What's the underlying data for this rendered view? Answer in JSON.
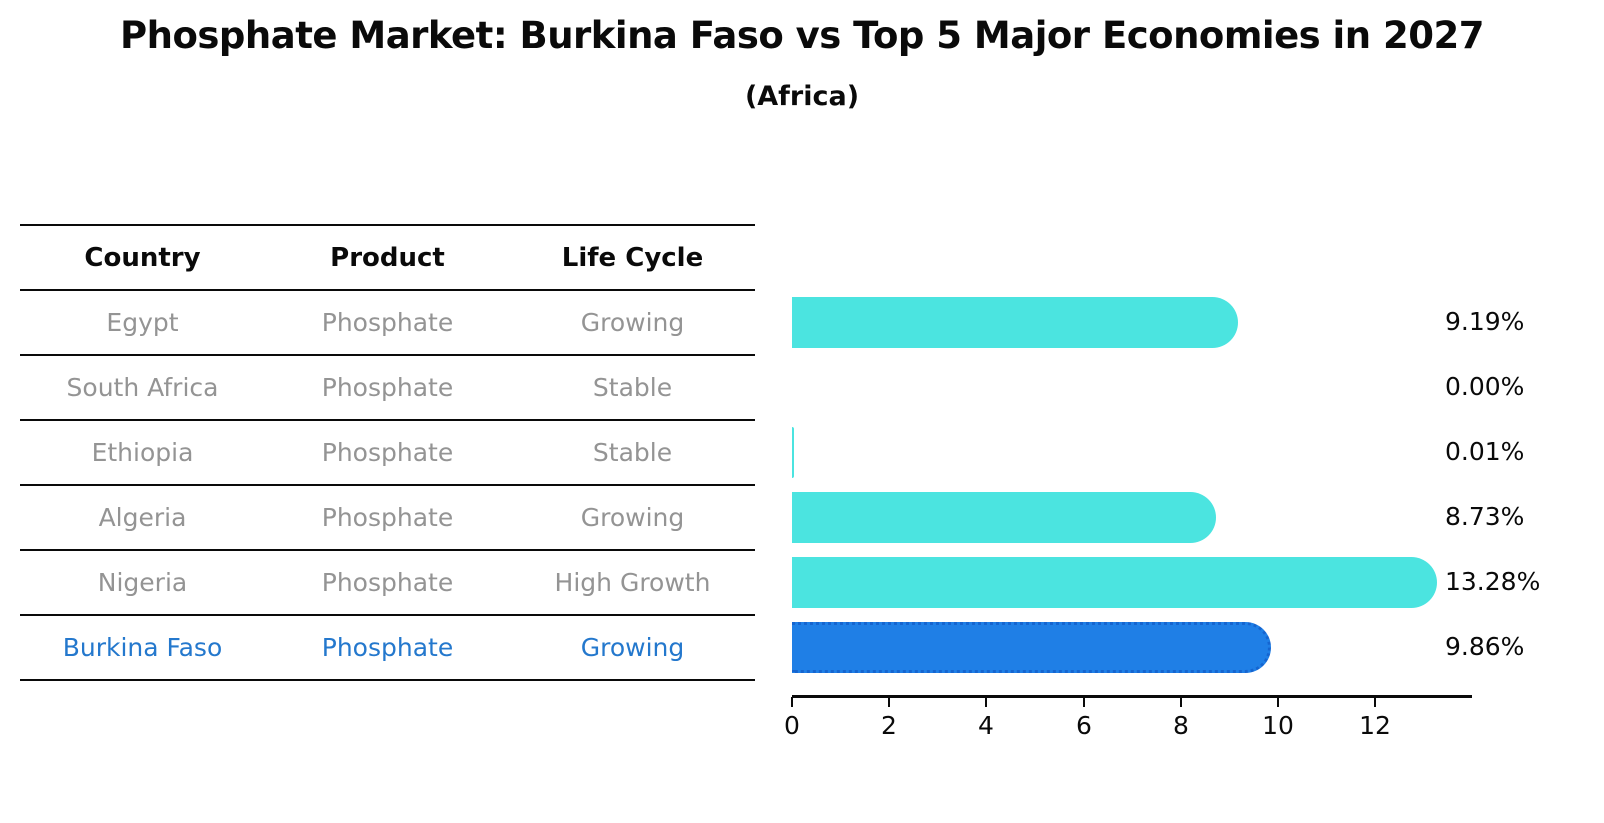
{
  "header": {
    "title": "Phosphate Market: Burkina Faso vs Top 5 Major Economies in 2027",
    "subtitle": "(Africa)"
  },
  "table": {
    "columns": [
      "Country",
      "Product",
      "Life Cycle"
    ],
    "rows": [
      {
        "country": "Egypt",
        "product": "Phosphate",
        "life_cycle": "Growing"
      },
      {
        "country": "South Africa",
        "product": "Phosphate",
        "life_cycle": "Stable"
      },
      {
        "country": "Ethiopia",
        "product": "Phosphate",
        "life_cycle": "Stable"
      },
      {
        "country": "Algeria",
        "product": "Phosphate",
        "life_cycle": "Growing"
      },
      {
        "country": "Nigeria",
        "product": "Phosphate",
        "life_cycle": "High Growth"
      },
      {
        "country": "Burkina Faso",
        "product": "Phosphate",
        "life_cycle": "Growing"
      }
    ]
  },
  "chart_data": {
    "type": "bar",
    "orientation": "horizontal",
    "title": "Phosphate Market: Burkina Faso vs Top 5 Major Economies in 2027",
    "subtitle": "(Africa)",
    "categories": [
      "Egypt",
      "South Africa",
      "Ethiopia",
      "Algeria",
      "Nigeria",
      "Burkina Faso"
    ],
    "values": [
      9.19,
      0.0,
      0.01,
      8.73,
      13.28,
      9.86
    ],
    "value_labels": [
      "9.19%",
      "0.00%",
      "0.01%",
      "8.73%",
      "13.28%",
      "9.86%"
    ],
    "xticks": [
      "0",
      "2",
      "4",
      "6",
      "8",
      "10",
      "12"
    ],
    "xlim": [
      0,
      14
    ],
    "grid": false,
    "legend": false,
    "highlight_index": 5,
    "colors": {
      "bar": "#4be4e0",
      "highlight_bar": "#1f7fe6",
      "highlight_edge": "#1565d0",
      "highlight_text": "#2478cd",
      "row_text": "#949494",
      "axis": "#0a0a0a"
    }
  }
}
